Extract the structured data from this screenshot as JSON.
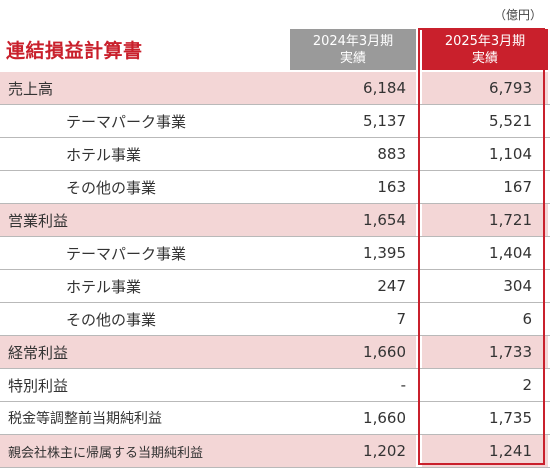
{
  "unit_note": "（億円）",
  "title": "連結損益計算書",
  "columns": {
    "prev": {
      "line1": "2024年3月期",
      "line2": "実績"
    },
    "curr": {
      "line1": "2025年3月期",
      "line2": "実績"
    }
  },
  "colors": {
    "accent": "#c9202c",
    "major_row_bg": "#f3d6d6",
    "prev_header_bg": "#9a9a9a"
  },
  "rows": [
    {
      "label": "売上高",
      "prev": "6,184",
      "curr": "6,793"
    },
    {
      "label": "テーマパーク事業",
      "prev": "5,137",
      "curr": "5,521"
    },
    {
      "label": "ホテル事業",
      "prev": "883",
      "curr": "1,104"
    },
    {
      "label": "その他の事業",
      "prev": "163",
      "curr": "167"
    },
    {
      "label": "営業利益",
      "prev": "1,654",
      "curr": "1,721"
    },
    {
      "label": "テーマパーク事業",
      "prev": "1,395",
      "curr": "1,404"
    },
    {
      "label": "ホテル事業",
      "prev": "247",
      "curr": "304"
    },
    {
      "label": "その他の事業",
      "prev": "7",
      "curr": "6"
    },
    {
      "label": "経常利益",
      "prev": "1,660",
      "curr": "1,733"
    },
    {
      "label": "特別利益",
      "prev": "-",
      "curr": "2"
    },
    {
      "label": "税金等調整前当期純利益",
      "prev": "1,660",
      "curr": "1,735"
    },
    {
      "label": "親会社株主に帰属する当期純利益",
      "prev": "1,202",
      "curr": "1,241"
    }
  ]
}
